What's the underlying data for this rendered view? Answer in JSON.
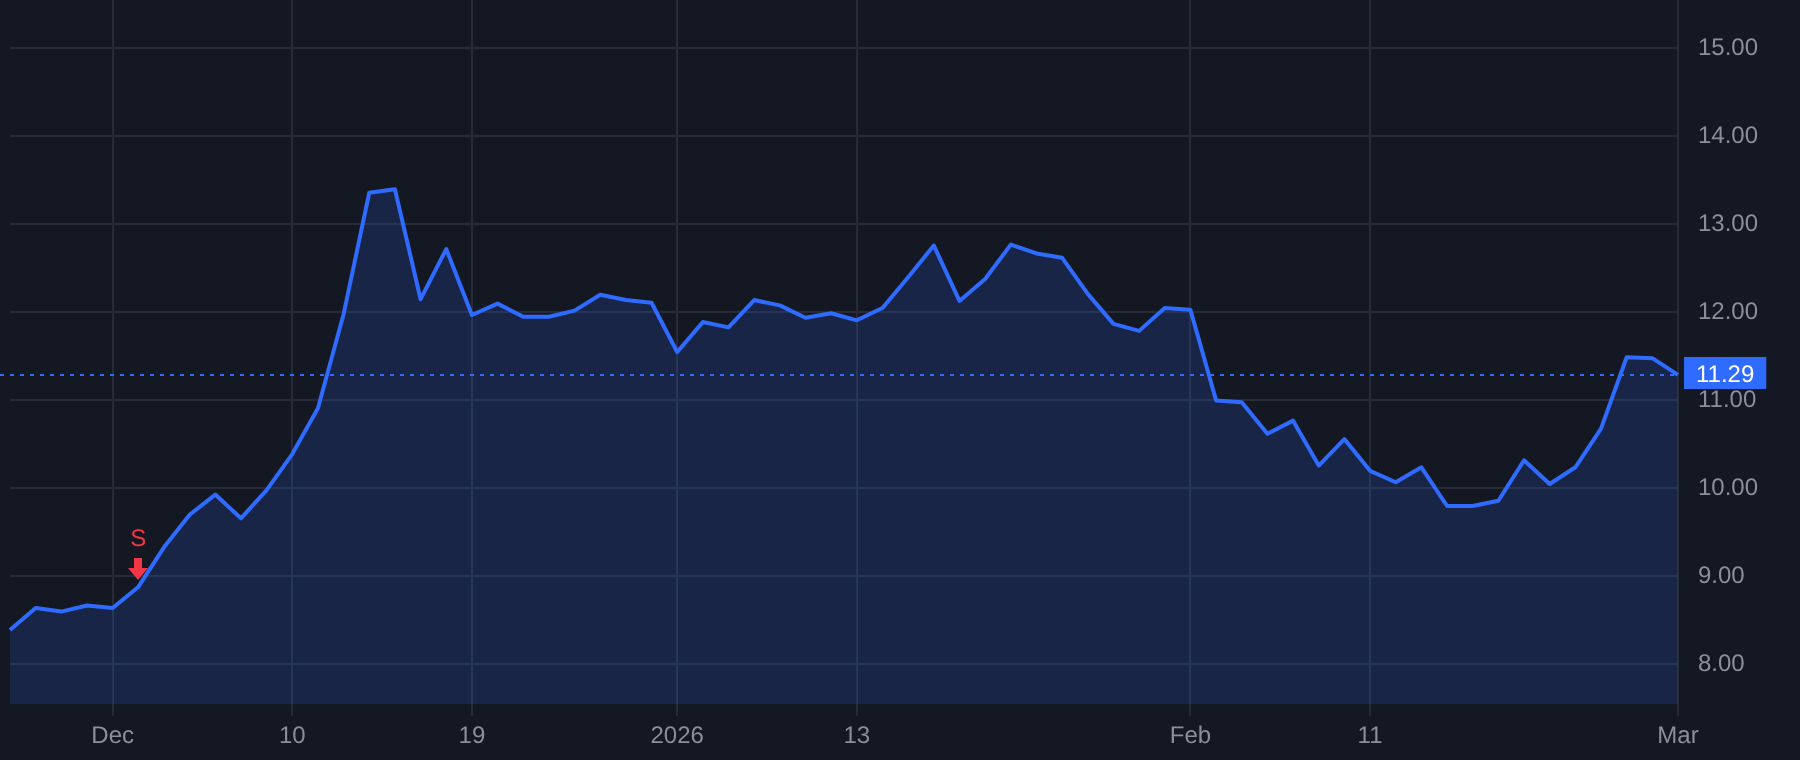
{
  "chart_data": {
    "type": "area",
    "categories": [
      null,
      null,
      null,
      null,
      "Dec",
      null,
      null,
      null,
      null,
      null,
      null,
      "10",
      null,
      null,
      null,
      null,
      null,
      null,
      "19",
      null,
      null,
      null,
      null,
      null,
      null,
      null,
      "2026",
      null,
      null,
      null,
      null,
      null,
      null,
      "13",
      null,
      null,
      null,
      null,
      null,
      null,
      null,
      null,
      null,
      null,
      null,
      null,
      "Feb",
      null,
      null,
      null,
      null,
      null,
      null,
      "11",
      null,
      null,
      null,
      null,
      null,
      null,
      null,
      null,
      null,
      null,
      null,
      "Mar"
    ],
    "series": [
      {
        "color": "#2f6bff",
        "values": [
          8.39,
          8.64,
          8.6,
          8.67,
          8.64,
          8.88,
          9.33,
          9.7,
          9.93,
          9.66,
          9.98,
          10.39,
          10.91,
          11.98,
          13.36,
          13.4,
          12.15,
          12.72,
          11.97,
          12.1,
          11.95,
          11.95,
          12.02,
          12.2,
          12.14,
          12.11,
          11.55,
          11.89,
          11.83,
          12.14,
          12.08,
          11.94,
          11.99,
          11.91,
          12.05,
          12.4,
          12.76,
          12.13,
          12.38,
          12.77,
          12.67,
          12.62,
          12.21,
          11.87,
          11.79,
          12.05,
          12.03,
          11.0,
          10.98,
          10.62,
          10.77,
          10.26,
          10.56,
          10.2,
          10.07,
          10.24,
          9.8,
          9.8,
          9.86,
          10.32,
          10.05,
          10.24,
          10.68,
          11.49,
          11.48,
          11.29
        ]
      }
    ],
    "ylim": [
      7.55,
      15.55
    ],
    "yticks": [
      {
        "value": 8,
        "label": "8.00"
      },
      {
        "value": 9,
        "label": "9.00"
      },
      {
        "value": 10,
        "label": "10.00"
      },
      {
        "value": 11,
        "label": "11.00"
      },
      {
        "value": 12,
        "label": "12.00"
      },
      {
        "value": 13,
        "label": "13.00"
      },
      {
        "value": 14,
        "label": "14.00"
      },
      {
        "value": 15,
        "label": "15.00"
      }
    ],
    "ref_lines": [
      {
        "axis": "y",
        "value": 11.29,
        "label": "11.29",
        "color": "#2f6bff",
        "line_style": "dotted"
      }
    ],
    "annotations": [
      {
        "text": "S",
        "y": 8.88
      }
    ],
    "grid": true,
    "legend": false,
    "marker": "none",
    "line_style": "solid"
  }
}
